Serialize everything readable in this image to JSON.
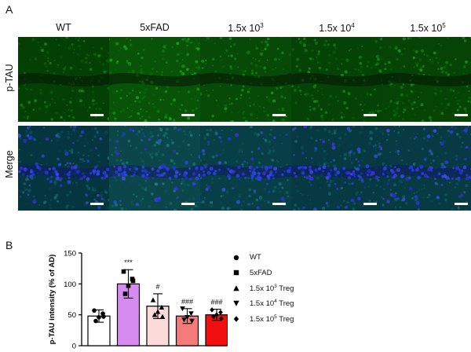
{
  "panel_a_label": "A",
  "panel_b_label": "B",
  "columns": [
    {
      "base": "WT",
      "sup": "",
      "tail": ""
    },
    {
      "base": "5xFAD",
      "sup": "",
      "tail": ""
    },
    {
      "base": "1.5x 10",
      "sup": "3",
      "tail": ""
    },
    {
      "base": "1.5x 10",
      "sup": "4",
      "tail": ""
    },
    {
      "base": "1.5x 10",
      "sup": "5",
      "tail": ""
    }
  ],
  "rows": [
    "p-TAU",
    "Merge"
  ],
  "colors": {
    "WT": "#ffffff",
    "5xFAD": "#d68bf0",
    "1.5x 10^3 Treg": "#fbdada",
    "1.5x 10^4 Treg": "#f57b7b",
    "1.5x 10^5 Treg": "#f20f0f"
  },
  "legend": [
    {
      "base": "WT",
      "sup": "",
      "tail": "",
      "marker": "circle"
    },
    {
      "base": "5xFAD",
      "sup": "",
      "tail": "",
      "marker": "square"
    },
    {
      "base": "1.5x 10",
      "sup": "3",
      "tail": " Treg",
      "marker": "triangle-up"
    },
    {
      "base": "1.5x 10",
      "sup": "4",
      "tail": " Treg",
      "marker": "triangle-down"
    },
    {
      "base": "1.5x 10",
      "sup": "5",
      "tail": " Treg",
      "marker": "diamond"
    }
  ],
  "chart_data": {
    "type": "bar",
    "ylabel": "p-TAU intensity  (% of AD)",
    "xlabel": "",
    "ylim": [
      0,
      150
    ],
    "yticks": [
      0,
      50,
      100,
      150
    ],
    "series": [
      {
        "name": "WT",
        "mean": 48,
        "sd": 10,
        "points": [
          57,
          52,
          46,
          40,
          47
        ],
        "marker": "circle",
        "annotation": ""
      },
      {
        "name": "5xFAD",
        "mean": 100,
        "sd": 23,
        "points": [
          120,
          108,
          97,
          84,
          105
        ],
        "marker": "square",
        "annotation": "***"
      },
      {
        "name": "1.5x 10^3 Treg",
        "mean": 64,
        "sd": 20,
        "points": [
          74,
          62,
          55,
          50,
          47
        ],
        "marker": "triangle-up",
        "annotation": "#"
      },
      {
        "name": "1.5x 10^4 Treg",
        "mean": 48,
        "sd": 12,
        "points": [
          60,
          52,
          46,
          42,
          40
        ],
        "marker": "triangle-down",
        "annotation": "###"
      },
      {
        "name": "1.5x 10^5 Treg",
        "mean": 50,
        "sd": 9,
        "points": [
          58,
          54,
          50,
          47,
          44
        ],
        "marker": "diamond",
        "annotation": "###"
      }
    ]
  }
}
